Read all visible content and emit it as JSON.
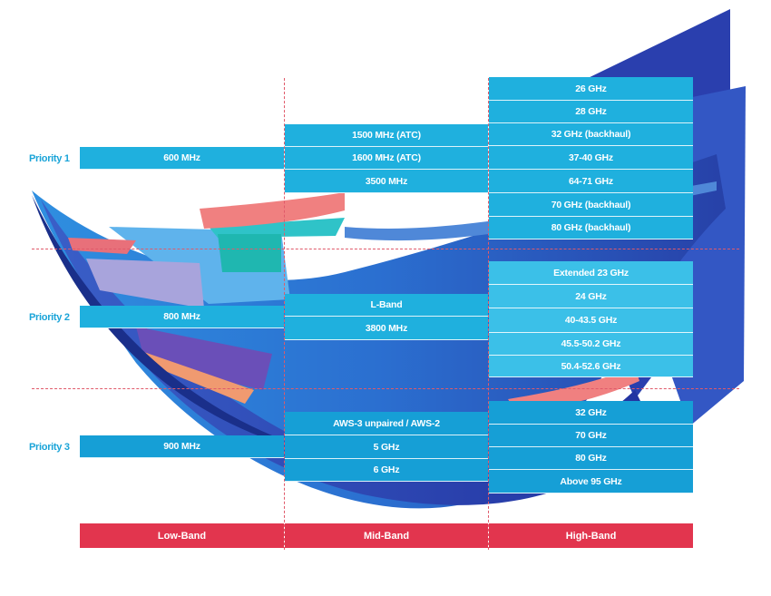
{
  "colors": {
    "cell": "#1fb0de",
    "cell_light": "#3bc0e8",
    "cell_mid": "#169fd6",
    "band_bar": "#e2354e",
    "priority_text": "#1aa4d8",
    "divider": "#e05a6a"
  },
  "priorities": [
    "Priority 1",
    "Priority 2",
    "Priority 3"
  ],
  "bands": [
    "Low-Band",
    "Mid-Band",
    "High-Band"
  ],
  "rows": {
    "p1": {
      "low": [
        "600 MHz"
      ],
      "mid": [
        "1500 MHz (ATC)",
        "1600 MHz (ATC)",
        "3500 MHz"
      ],
      "high": [
        "26 GHz",
        "28 GHz",
        "32 GHz (backhaul)",
        "37-40 GHz",
        "64-71 GHz",
        "70 GHz (backhaul)",
        "80 GHz (backhaul)"
      ]
    },
    "p2": {
      "low": [
        "800 MHz"
      ],
      "mid": [
        "L-Band",
        "3800 MHz"
      ],
      "high": [
        "Extended 23 GHz",
        "24 GHz",
        "40-43.5 GHz",
        "45.5-50.2 GHz",
        "50.4-52.6 GHz"
      ]
    },
    "p3": {
      "low": [
        "900 MHz"
      ],
      "mid": [
        "AWS-3 unpaired / AWS-2",
        "5 GHz",
        "6 GHz"
      ],
      "high": [
        "32 GHz",
        "70 GHz",
        "80 GHz",
        "Above 95 GHz"
      ]
    }
  }
}
